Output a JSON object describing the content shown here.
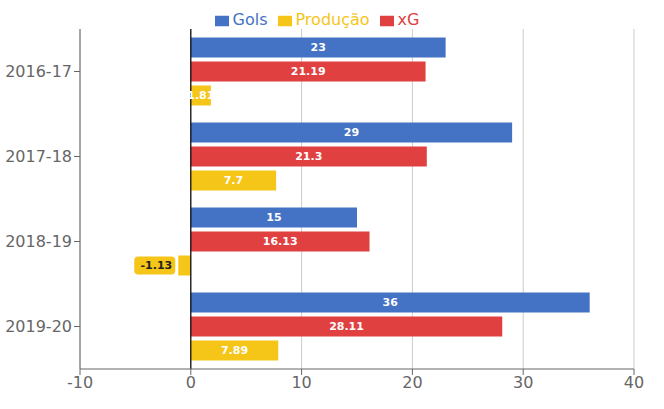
{
  "chart_data": {
    "type": "bar",
    "orientation": "horizontal",
    "categories": [
      "2019-20",
      "2018-19",
      "2017-18",
      "2016-17"
    ],
    "series": [
      {
        "name": "Gols",
        "color": "#4472C4",
        "values": [
          36,
          15,
          29,
          23
        ]
      },
      {
        "name": "xG",
        "color": "#E04040",
        "values": [
          28.11,
          16.13,
          21.3,
          21.19
        ]
      },
      {
        "name": "Produção",
        "color": "#F5C518",
        "values": [
          7.89,
          -1.13,
          7.7,
          1.81
        ]
      }
    ],
    "xlim": [
      -10,
      40
    ],
    "xticks": [
      -10,
      0,
      10,
      20,
      30,
      40
    ],
    "grid": true,
    "legend": "top",
    "data_labels": true
  }
}
